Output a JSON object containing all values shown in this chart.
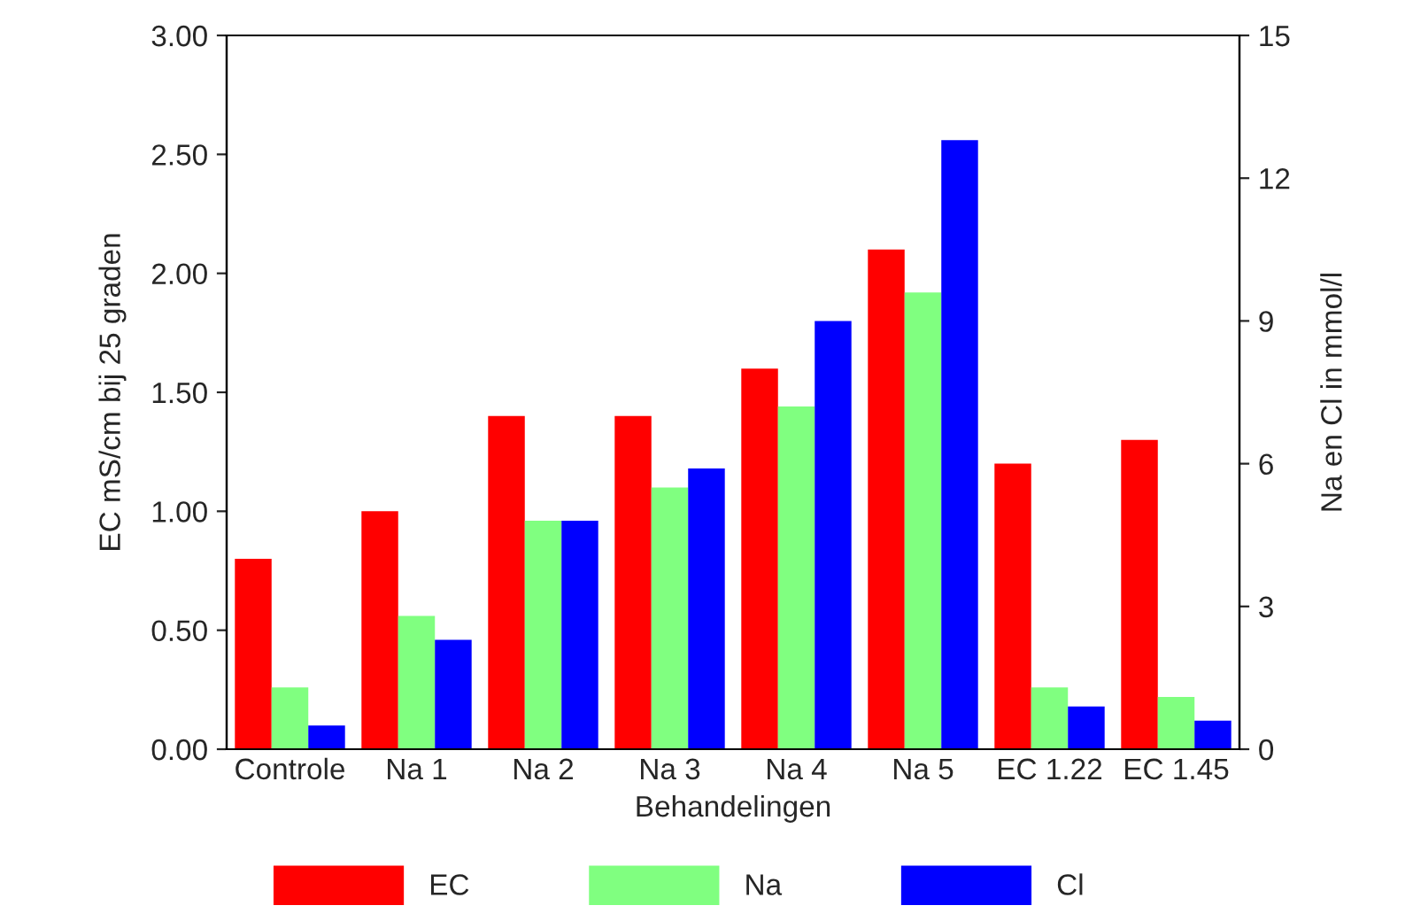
{
  "chart_data": {
    "type": "bar",
    "xlabel": "Behandelingen",
    "ylabel": "EC mS/cm bij 25 graden",
    "y2label": "Na en Cl in mmol/l",
    "categories": [
      "Controle",
      "Na 1",
      "Na 2",
      "Na 3",
      "Na 4",
      "Na 5",
      "EC 1.22",
      "EC 1.45"
    ],
    "series": [
      {
        "name": "EC",
        "color": "#ff0000",
        "values": [
          0.8,
          1.0,
          1.4,
          1.4,
          1.6,
          2.1,
          1.2,
          1.3
        ]
      },
      {
        "name": "Na",
        "color": "#80ff80",
        "axis": "y2",
        "values": [
          1.3,
          2.8,
          4.8,
          5.5,
          7.2,
          9.6,
          1.3,
          1.1
        ]
      },
      {
        "name": "Cl",
        "color": "#0000ff",
        "axis": "y2",
        "values": [
          0.5,
          2.3,
          4.8,
          5.9,
          9.0,
          12.8,
          0.9,
          0.6
        ]
      }
    ],
    "ylim": [
      0,
      3
    ],
    "yticks": [
      {
        "value": 0,
        "label": "0.00"
      },
      {
        "value": 0.5,
        "label": "0.50"
      },
      {
        "value": 1,
        "label": "1.00"
      },
      {
        "value": 1.5,
        "label": "1.50"
      },
      {
        "value": 2,
        "label": "2.00"
      },
      {
        "value": 2.5,
        "label": "2.50"
      },
      {
        "value": 3,
        "label": "3.00"
      }
    ],
    "y2lim": [
      0,
      15
    ],
    "y2ticks": [
      0,
      3,
      6,
      9,
      12,
      15
    ],
    "legend": "bottom",
    "grid": false
  }
}
